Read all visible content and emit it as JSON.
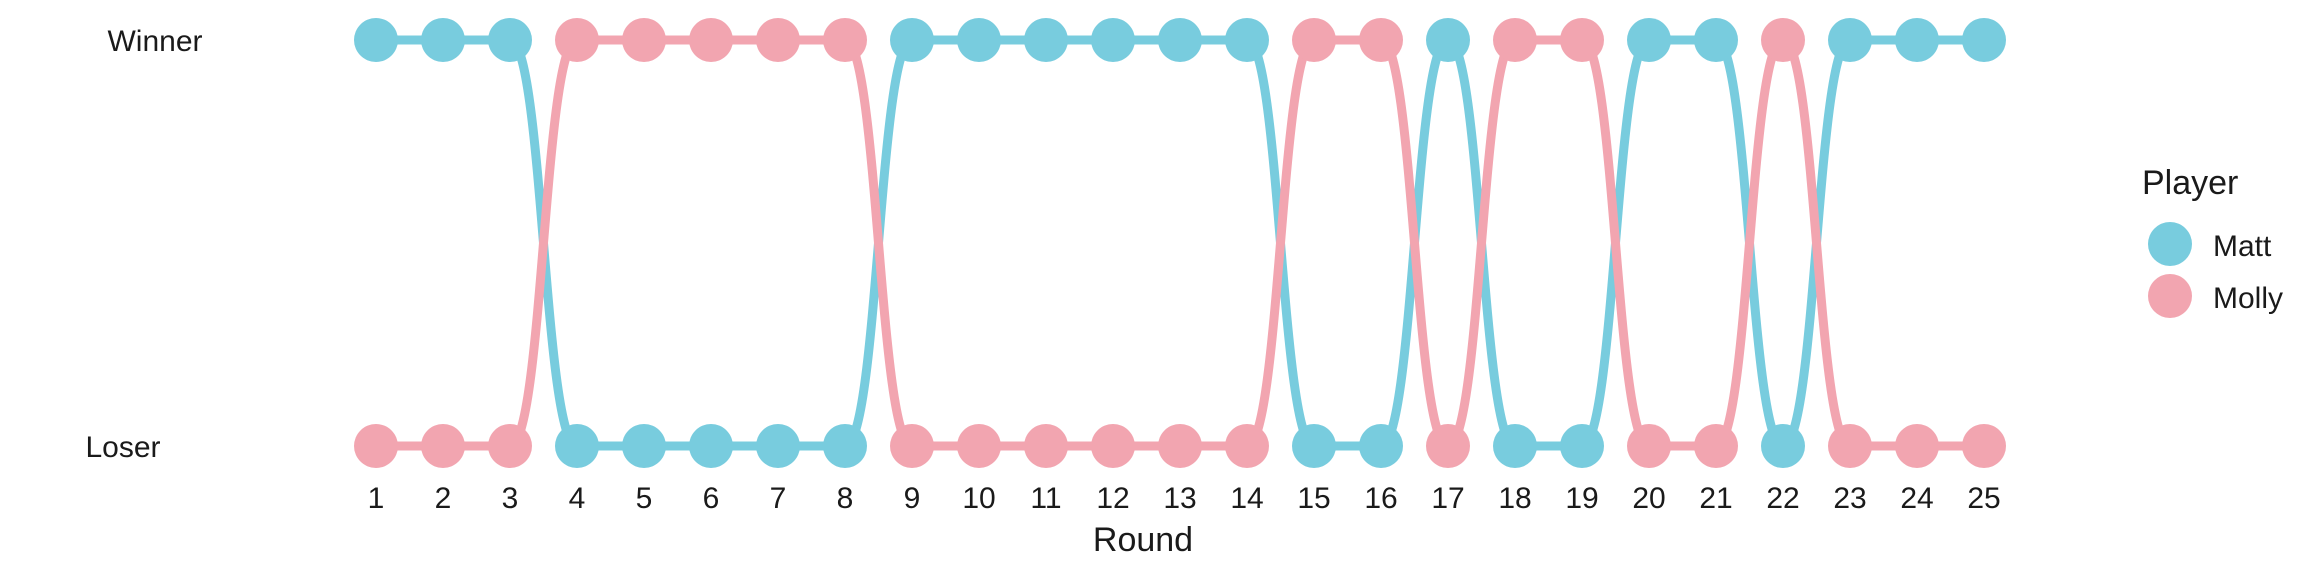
{
  "chart_data": {
    "type": "line",
    "xlabel": "Round",
    "ylabel": "",
    "x": [
      1,
      2,
      3,
      4,
      5,
      6,
      7,
      8,
      9,
      10,
      11,
      12,
      13,
      14,
      15,
      16,
      17,
      18,
      19,
      20,
      21,
      22,
      23,
      24,
      25
    ],
    "y_categories": [
      "Loser",
      "Winner"
    ],
    "winners": [
      "Matt",
      "Matt",
      "Matt",
      "Molly",
      "Molly",
      "Molly",
      "Molly",
      "Molly",
      "Matt",
      "Matt",
      "Matt",
      "Matt",
      "Matt",
      "Matt",
      "Molly",
      "Molly",
      "Matt",
      "Molly",
      "Molly",
      "Matt",
      "Matt",
      "Molly",
      "Matt",
      "Matt",
      "Matt"
    ],
    "series": [
      {
        "name": "Matt",
        "color": "#78CCDE"
      },
      {
        "name": "Molly",
        "color": "#F2A5B0"
      }
    ],
    "legend": {
      "title": "Player",
      "position": "right"
    },
    "grid": false
  }
}
